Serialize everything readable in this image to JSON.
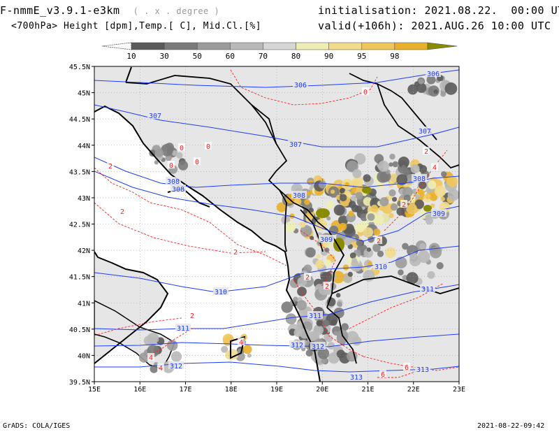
{
  "header": {
    "model": "F-nmmE_v3.9.1-e3km",
    "projection": "( . x . degree )",
    "fields": "<700hPa> Height [dpm],Temp.[ C], Mid.Cl.[%]",
    "init_label": "initialisation:",
    "init_value": "2021.08.22.  00:00 UTC",
    "valid_label": "valid(+106h):",
    "valid_value": "2021.AUG.26 10:00 UTC"
  },
  "colorbar": {
    "labels": [
      "10",
      "30",
      "50",
      "60",
      "70",
      "80",
      "90",
      "95",
      "98"
    ],
    "colors": [
      "#5a5a5a",
      "#7a7a7a",
      "#9b9b9b",
      "#b9b9b9",
      "#d6d6d6",
      "#eeeeb4",
      "#f2dc8c",
      "#efc65c",
      "#e9b02a",
      "#8b8b00"
    ]
  },
  "map": {
    "lon_labels": [
      "15E",
      "16E",
      "17E",
      "18E",
      "19E",
      "20E",
      "21E",
      "22E",
      "23E"
    ],
    "lat_labels": [
      "45.5N",
      "45N",
      "44.5N",
      "44N",
      "43.5N",
      "43N",
      "42.5N",
      "42N",
      "41.5N",
      "41N",
      "40.5N",
      "40N",
      "39.5N"
    ],
    "height_labels": [
      "306",
      "306",
      "307",
      "307",
      "307",
      "308",
      "308",
      "308",
      "308",
      "309",
      "309",
      "310",
      "310",
      "311",
      "311",
      "311",
      "312",
      "312",
      "312",
      "313",
      "313"
    ],
    "temp_labels": [
      "0",
      "0",
      "0",
      "0",
      "0",
      "2",
      "2",
      "2",
      "2",
      "2",
      "2",
      "2",
      "2",
      "2",
      "4",
      "4",
      "4",
      "4",
      "6",
      "6"
    ],
    "colors": {
      "land": "#e6e6e6",
      "height_contour": "#1e3cff",
      "temp_contour": "#ff2020",
      "border": "#000000",
      "grid": "#9a9a9a"
    }
  },
  "footer": {
    "left": "GrADS: COLA/IGES",
    "right": "2021-08-22-09:42"
  }
}
